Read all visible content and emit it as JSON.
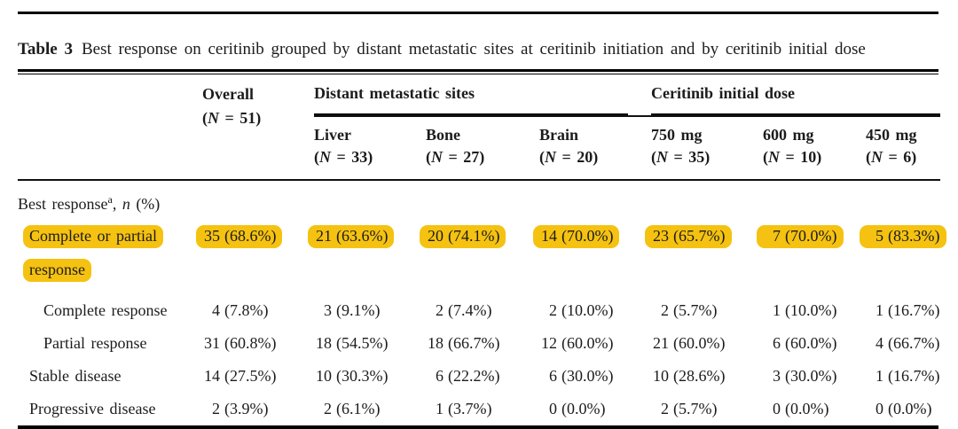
{
  "colors": {
    "highlight": "#F5C211",
    "text": "#1c1c1c",
    "rule": "#000000"
  },
  "title": {
    "label": "Table 3",
    "text": "Best response on ceritinib grouped by distant metastatic sites at ceritinib initiation and by ceritinib initial dose"
  },
  "header": {
    "overall": {
      "name": "Overall",
      "n_prefix": "(",
      "n_symbol": "N",
      "n_suffix": " = 51)"
    },
    "groups": [
      {
        "label": "Distant metastatic sites"
      },
      {
        "label": "Ceritinib initial dose"
      }
    ],
    "subcolumns": [
      {
        "name": "Liver",
        "n_prefix": "(",
        "n_symbol": "N",
        "n_suffix": " = 33)"
      },
      {
        "name": "Bone",
        "n_prefix": "(",
        "n_symbol": "N",
        "n_suffix": " = 27)"
      },
      {
        "name": "Brain",
        "n_prefix": "(",
        "n_symbol": "N",
        "n_suffix": " = 20)"
      },
      {
        "name": "750 mg",
        "n_prefix": "(",
        "n_symbol": "N",
        "n_suffix": " = 35)"
      },
      {
        "name": "600 mg",
        "n_prefix": "(",
        "n_symbol": "N",
        "n_suffix": " = 10)"
      },
      {
        "name": "450 mg",
        "n_prefix": "(",
        "n_symbol": "N",
        "n_suffix": " = 6)"
      }
    ]
  },
  "section": {
    "text": "Best response",
    "superscript": "a",
    "separator": ", ",
    "symbol": "n",
    "suffix": " (%)"
  },
  "rows": [
    {
      "label_line1": "Complete or partial",
      "label_line2": "response",
      "highlighted": true,
      "cells": [
        {
          "n": "35",
          "pct": "(68.6%)"
        },
        {
          "n": "21",
          "pct": "(63.6%)"
        },
        {
          "n": "20",
          "pct": "(74.1%)"
        },
        {
          "n": "14",
          "pct": "(70.0%)"
        },
        {
          "n": "23",
          "pct": "(65.7%)"
        },
        {
          "n": "7",
          "pct": "(70.0%)"
        },
        {
          "n": "5",
          "pct": "(83.3%)"
        }
      ]
    },
    {
      "label": "Complete response",
      "highlighted": false,
      "cells": [
        {
          "n": "4",
          "pct": "(7.8%)"
        },
        {
          "n": "3",
          "pct": "(9.1%)"
        },
        {
          "n": "2",
          "pct": "(7.4%)"
        },
        {
          "n": "2",
          "pct": "(10.0%)"
        },
        {
          "n": "2",
          "pct": "(5.7%)"
        },
        {
          "n": "1",
          "pct": "(10.0%)"
        },
        {
          "n": "1",
          "pct": "(16.7%)"
        }
      ]
    },
    {
      "label": "Partial response",
      "highlighted": false,
      "cells": [
        {
          "n": "31",
          "pct": "(60.8%)"
        },
        {
          "n": "18",
          "pct": "(54.5%)"
        },
        {
          "n": "18",
          "pct": "(66.7%)"
        },
        {
          "n": "12",
          "pct": "(60.0%)"
        },
        {
          "n": "21",
          "pct": "(60.0%)"
        },
        {
          "n": "6",
          "pct": "(60.0%)"
        },
        {
          "n": "4",
          "pct": "(66.7%)"
        }
      ]
    },
    {
      "label": "Stable disease",
      "highlighted": false,
      "cells": [
        {
          "n": "14",
          "pct": "(27.5%)"
        },
        {
          "n": "10",
          "pct": "(30.3%)"
        },
        {
          "n": "6",
          "pct": "(22.2%)"
        },
        {
          "n": "6",
          "pct": "(30.0%)"
        },
        {
          "n": "10",
          "pct": "(28.6%)"
        },
        {
          "n": "3",
          "pct": "(30.0%)"
        },
        {
          "n": "1",
          "pct": "(16.7%)"
        }
      ]
    },
    {
      "label": "Progressive disease",
      "highlighted": false,
      "cells": [
        {
          "n": "2",
          "pct": "(3.9%)"
        },
        {
          "n": "2",
          "pct": "(6.1%)"
        },
        {
          "n": "1",
          "pct": "(3.7%)"
        },
        {
          "n": "0",
          "pct": "(0.0%)"
        },
        {
          "n": "2",
          "pct": "(5.7%)"
        },
        {
          "n": "0",
          "pct": "(0.0%)"
        },
        {
          "n": "0",
          "pct": "(0.0%)"
        }
      ]
    }
  ],
  "chart_data": {
    "type": "table",
    "title": "Table 3 Best response on ceritinib grouped by distant metastatic sites at ceritinib initiation and by ceritinib initial dose",
    "columns": [
      "Best response, n (%)",
      "Overall (N = 51)",
      "Liver (N = 33)",
      "Bone (N = 27)",
      "Brain (N = 20)",
      "750 mg (N = 35)",
      "600 mg (N = 10)",
      "450 mg (N = 6)"
    ],
    "column_groups": [
      "",
      "Overall",
      "Distant metastatic sites",
      "Distant metastatic sites",
      "Distant metastatic sites",
      "Ceritinib initial dose",
      "Ceritinib initial dose",
      "Ceritinib initial dose"
    ],
    "rows": [
      [
        "Complete or partial response",
        "35 (68.6%)",
        "21 (63.6%)",
        "20 (74.1%)",
        "14 (70.0%)",
        "23 (65.7%)",
        "7 (70.0%)",
        "5 (83.3%)"
      ],
      [
        "Complete response",
        "4 (7.8%)",
        "3 (9.1%)",
        "2 (7.4%)",
        "2 (10.0%)",
        "2 (5.7%)",
        "1 (10.0%)",
        "1 (16.7%)"
      ],
      [
        "Partial response",
        "31 (60.8%)",
        "18 (54.5%)",
        "18 (66.7%)",
        "12 (60.0%)",
        "21 (60.0%)",
        "6 (60.0%)",
        "4 (66.7%)"
      ],
      [
        "Stable disease",
        "14 (27.5%)",
        "10 (30.3%)",
        "6 (22.2%)",
        "6 (30.0%)",
        "10 (28.6%)",
        "3 (30.0%)",
        "1 (16.7%)"
      ],
      [
        "Progressive disease",
        "2 (3.9%)",
        "2 (6.1%)",
        "1 (3.7%)",
        "0 (0.0%)",
        "2 (5.7%)",
        "0 (0.0%)",
        "0 (0.0%)"
      ]
    ],
    "highlighted_rows": [
      0
    ]
  }
}
